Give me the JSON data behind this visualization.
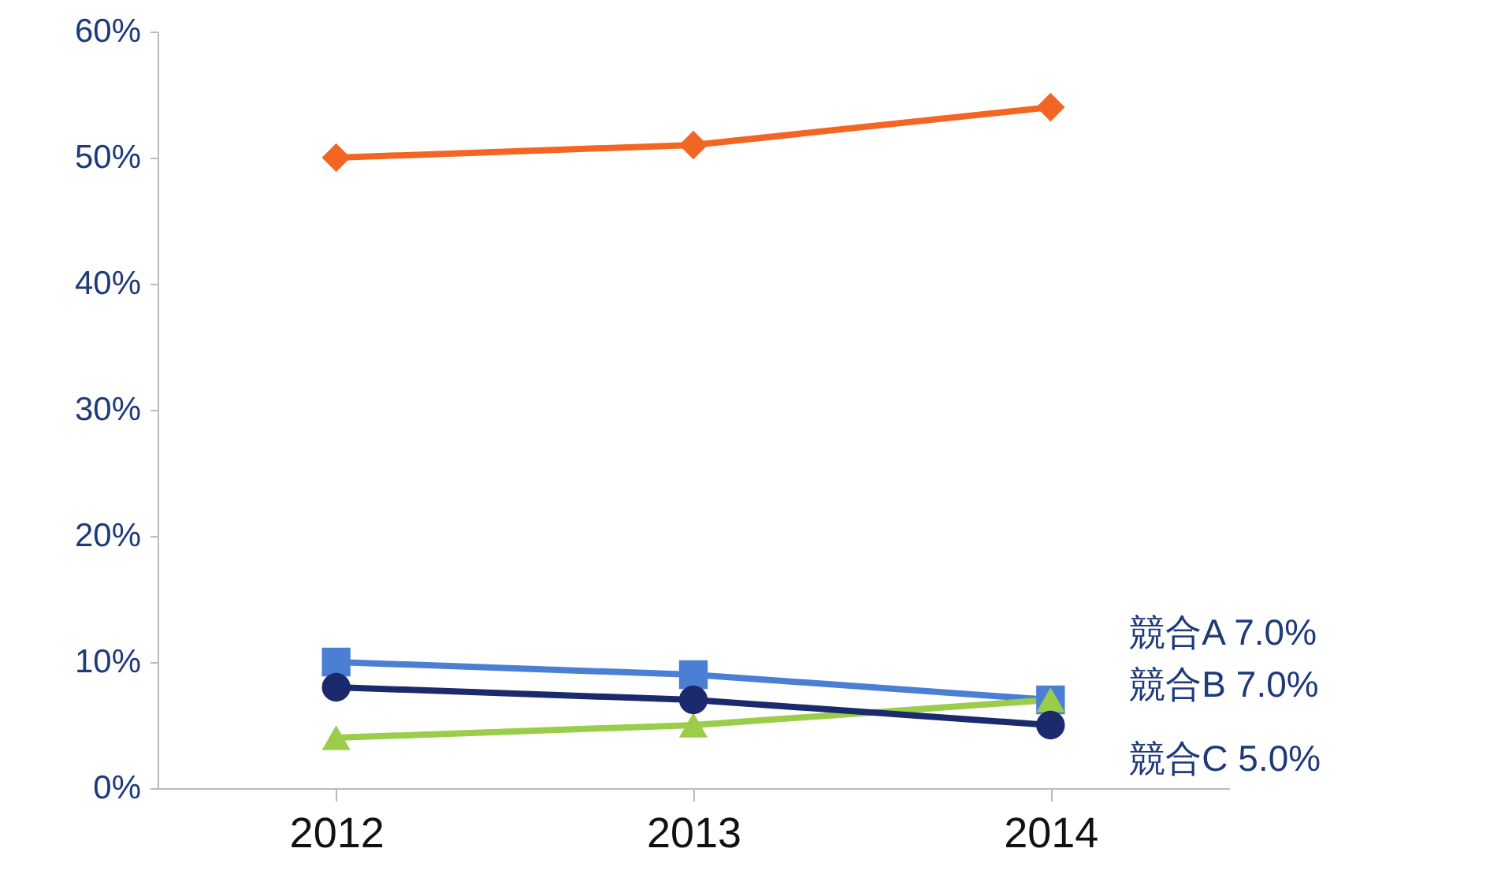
{
  "chart_data": {
    "type": "line",
    "categories": [
      "2012",
      "2013",
      "2014"
    ],
    "series": [
      {
        "color": "#f26522",
        "marker": "diamond",
        "values": [
          50,
          51,
          54
        ]
      },
      {
        "name": "競合A",
        "color": "#4a7fd4",
        "marker": "square",
        "values": [
          10,
          9,
          7
        ],
        "value_labels": [
          null,
          null,
          "7.0%"
        ]
      },
      {
        "name": "競合B",
        "color": "#9acd4a",
        "marker": "triangle",
        "values": [
          4,
          5,
          7
        ],
        "value_labels": [
          null,
          null,
          "7.0%"
        ]
      },
      {
        "name": "競合C",
        "color": "#1a2a6c",
        "marker": "circle",
        "values": [
          8,
          7,
          5
        ],
        "value_labels": [
          null,
          null,
          "5.0%"
        ]
      }
    ],
    "ylim": [
      0,
      60
    ],
    "yticks": [
      {
        "value": 0,
        "label": "0%"
      },
      {
        "value": 10,
        "label": "10%"
      },
      {
        "value": 20,
        "label": "20%"
      },
      {
        "value": 30,
        "label": "30%"
      },
      {
        "value": 40,
        "label": "40%"
      },
      {
        "value": 50,
        "label": "50%"
      },
      {
        "value": 60,
        "label": "60%"
      }
    ],
    "grid": false,
    "line_style": "solid"
  }
}
